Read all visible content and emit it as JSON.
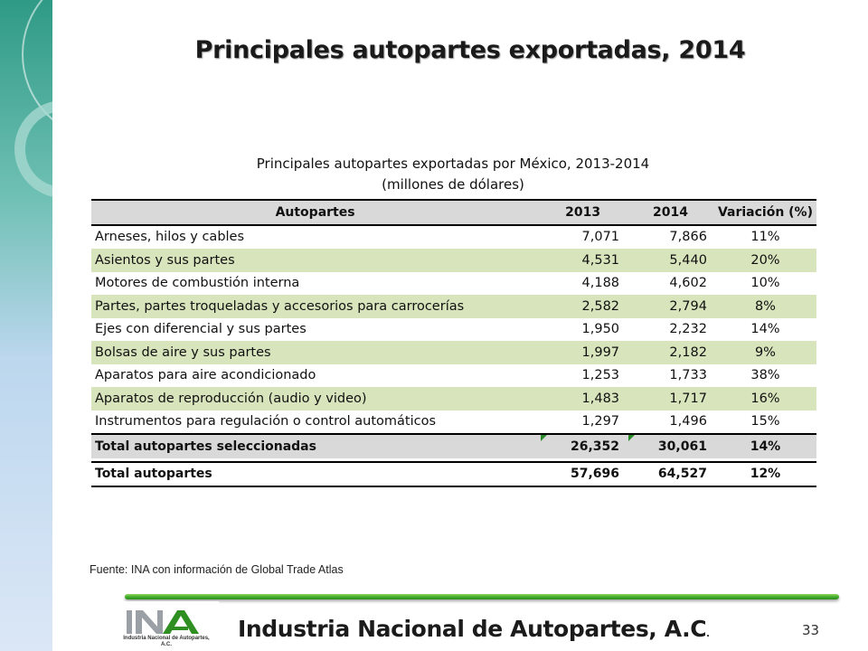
{
  "slide": {
    "title": "Principales autopartes exportadas, 2014",
    "page_number": "33"
  },
  "table": {
    "caption_line1": "Principales autopartes exportadas por México, 2013-2014",
    "caption_line2": "(millones de dólares)",
    "headers": [
      "Autopartes",
      "2013",
      "2014",
      "Variación  (%)"
    ],
    "rows": [
      [
        "Arneses, hilos y cables",
        "7,071",
        "7,866",
        "11%"
      ],
      [
        "Asientos y sus partes",
        "4,531",
        "5,440",
        "20%"
      ],
      [
        "Motores de combustión interna",
        "4,188",
        "4,602",
        "10%"
      ],
      [
        "Partes, partes troqueladas y accesorios para carrocerías",
        "2,582",
        "2,794",
        "8%"
      ],
      [
        "Ejes con diferencial y sus partes",
        "1,950",
        "2,232",
        "14%"
      ],
      [
        "Bolsas de aire y sus partes",
        "1,997",
        "2,182",
        "9%"
      ],
      [
        "Aparatos para aire acondicionado",
        "1,253",
        "1,733",
        "38%"
      ],
      [
        "Aparatos de reproducción (audio y video)",
        "1,483",
        "1,717",
        "16%"
      ],
      [
        "Instrumentos para regulación o control automáticos",
        "1,297",
        "1,496",
        "15%"
      ]
    ],
    "total_selected": [
      "Total autopartes seleccionadas",
      "26,352",
      "30,061",
      "14%"
    ],
    "total": [
      "Total autopartes",
      "57,696",
      "64,527",
      "12%"
    ]
  },
  "source_note": "Fuente: INA con información de Global Trade Atlas",
  "footer": {
    "organization": "Industria Nacional de  Autopartes, A.C",
    "organization_dot": ".",
    "logo_text": "Industria Nacional de Autopartes, A.C."
  },
  "colors": {
    "alt_row": "#d7e4bc",
    "header_row": "#d9d9d9",
    "accent_green": "#3aa62a",
    "side_teal": "#2f9a86"
  }
}
